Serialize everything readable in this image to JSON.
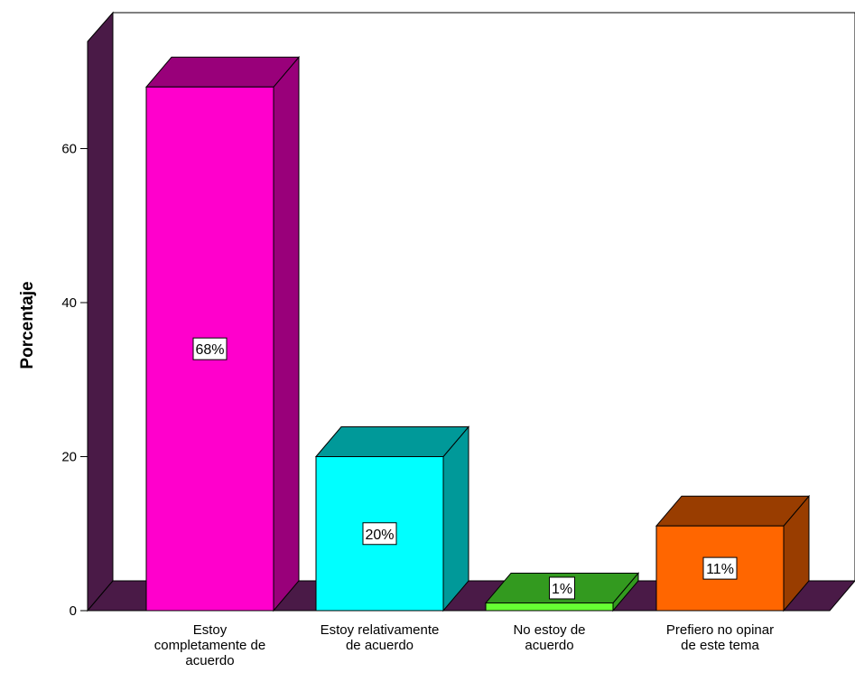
{
  "chart_data": {
    "type": "bar",
    "ylabel": "Porcentaje",
    "ylim": [
      0,
      70
    ],
    "yticks": [
      0,
      20,
      40,
      60
    ],
    "categories": [
      [
        "Estoy",
        "completamente de",
        "acuerdo"
      ],
      [
        "Estoy relativamente",
        "de acuerdo"
      ],
      [
        "No estoy de",
        "acuerdo"
      ],
      [
        "Prefiero no opinar",
        "de este tema"
      ]
    ],
    "values": [
      68,
      20,
      1,
      11
    ],
    "data_labels": [
      "68%",
      "20%",
      "1%",
      "11%"
    ],
    "colors": [
      {
        "front": "#ff00cc",
        "side": "#99007a"
      },
      {
        "front": "#00ffff",
        "side": "#009999"
      },
      {
        "front": "#66ff33",
        "side": "#339a1f"
      },
      {
        "front": "#ff6600",
        "side": "#993d00"
      }
    ],
    "wall_color": "#4a1a47",
    "grid": false,
    "three_d": true
  }
}
